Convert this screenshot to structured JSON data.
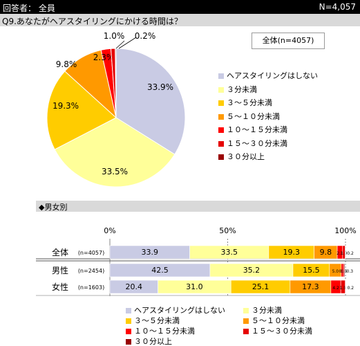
{
  "header": {
    "respondent": "回答者： 全員",
    "n": "N=4,057"
  },
  "question": "Q9.あなたがヘアスタイリングにかける時間は？",
  "pie_box_label": "全体(n=4057)",
  "section_title": "◆男女別",
  "colors": [
    "#c9cbe4",
    "#ffff99",
    "#ffcc00",
    "#ff9900",
    "#ff0000",
    "#e60000",
    "#990000"
  ],
  "chart_data": [
    {
      "type": "pie",
      "labels": [
        "ヘアスタイリングはしない",
        "３分未満",
        "３～５分未満",
        "５～１０分未満",
        "１０～１５分未満",
        "１５～３０分未満",
        "３０分以上"
      ],
      "values": [
        33.9,
        33.5,
        19.3,
        9.8,
        2.3,
        1.0,
        0.2
      ],
      "value_labels": [
        "33.9%",
        "33.5%",
        "19.3%",
        "9.8%",
        "2.3%",
        "1.0%",
        "0.2%"
      ],
      "legend": "right"
    },
    {
      "type": "bar",
      "orientation": "horizontal-stacked",
      "xticks": [
        "0%",
        "50%",
        "100%"
      ],
      "xlim": [
        0,
        100
      ],
      "categories": [
        {
          "label": "全体",
          "n": "(n=4057)"
        },
        {
          "label": "男性",
          "n": "(n=2454)"
        },
        {
          "label": "女性",
          "n": "(n=1603)"
        }
      ],
      "series": [
        {
          "name": "ヘアスタイリングはしない",
          "values": [
            33.9,
            42.5,
            20.4
          ],
          "labels": [
            "33.9",
            "42.5",
            "20.4"
          ]
        },
        {
          "name": "３分未満",
          "values": [
            33.5,
            35.2,
            31.0
          ],
          "labels": [
            "33.5",
            "35.2",
            "31.0"
          ]
        },
        {
          "name": "３～５分未満",
          "values": [
            19.3,
            15.5,
            25.1
          ],
          "labels": [
            "19.3",
            "15.5",
            "25.1"
          ]
        },
        {
          "name": "５～１０分未満",
          "values": [
            9.8,
            5.0,
            17.3
          ],
          "labels": [
            "9.8",
            "5.0",
            "17.3"
          ]
        },
        {
          "name": "１０～１５分未満",
          "values": [
            2.3,
            0.9,
            4.2
          ],
          "labels": [
            "2.3",
            "0.9",
            "4.2"
          ]
        },
        {
          "name": "１５～３０分未満",
          "values": [
            1.0,
            0.4,
            1.9
          ],
          "labels": [
            "1.0",
            "0.4",
            "1.9"
          ]
        },
        {
          "name": "３０分以上",
          "values": [
            0.2,
            0.3,
            0.2
          ],
          "labels": [
            "0.2",
            "0.3",
            "0.2"
          ]
        }
      ],
      "legend": "bottom"
    }
  ]
}
